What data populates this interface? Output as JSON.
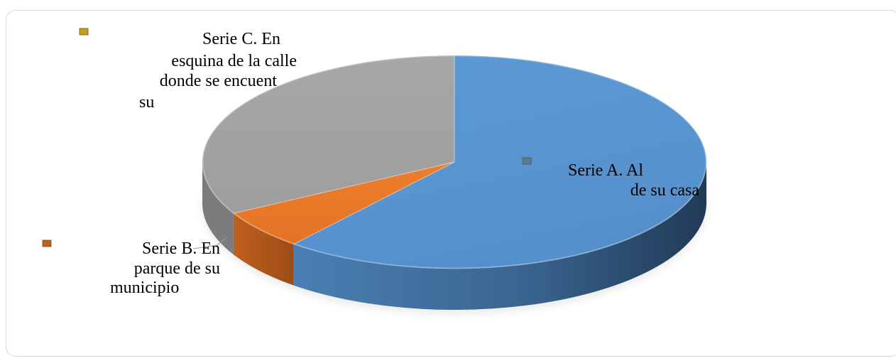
{
  "chart_data": {
    "type": "pie",
    "style": "3d",
    "legend": "none",
    "slices": [
      {
        "label_lines": [
          "Serie   A.          Al",
          "de su casa"
        ],
        "value": 61,
        "color": "#5b9bd5"
      },
      {
        "label_lines": [
          "Serie   B. En",
          "parque de su",
          "municipio"
        ],
        "value": 6,
        "color": "#ed7d31"
      },
      {
        "label_lines": [
          "Serie  C. En",
          "esquina de la calle",
          "donde se encuent",
          "su"
        ],
        "value": 33,
        "color": "#a5a5a5"
      }
    ]
  }
}
